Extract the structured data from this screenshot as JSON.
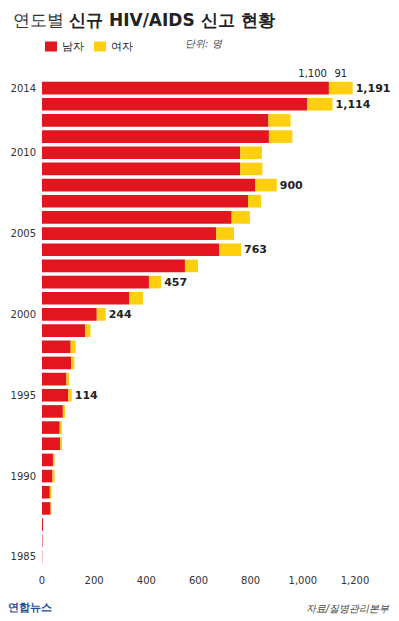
{
  "chart_data": {
    "type": "bar",
    "title": "연도별 신규 HIV/AIDS 신고 현황",
    "unit": "단위: 명",
    "source": "자료/질병관리본부",
    "credit": "연합뉴스",
    "orientation": "horizontal",
    "stacked": true,
    "grid": false,
    "legend": "top-left",
    "categories": [
      "1985",
      null,
      null,
      null,
      null,
      "1990",
      null,
      null,
      null,
      null,
      "1995",
      null,
      null,
      null,
      null,
      "2000",
      null,
      null,
      null,
      null,
      "2005",
      null,
      null,
      null,
      null,
      "2010",
      null,
      null,
      null,
      "2014"
    ],
    "series": [
      {
        "name": "남자",
        "color": "#e3161f",
        "values": [
          1,
          2,
          4,
          33,
          30,
          40,
          42,
          70,
          68,
          80,
          101,
          94,
          112,
          110,
          166,
          210,
          335,
          410,
          548,
          680,
          668,
          727,
          790,
          818,
          760,
          760,
          870,
          868,
          1016,
          1100
        ],
        "value_labels": [
          null,
          null,
          null,
          null,
          null,
          null,
          null,
          null,
          null,
          null,
          null,
          null,
          null,
          null,
          null,
          null,
          null,
          null,
          null,
          null,
          null,
          null,
          null,
          null,
          null,
          null,
          null,
          null,
          null,
          "1,100"
        ]
      },
      {
        "name": "여자",
        "color": "#fdcf0c",
        "values": [
          0,
          0,
          0,
          3,
          6,
          8,
          6,
          7,
          8,
          8,
          13,
          10,
          12,
          19,
          20,
          34,
          52,
          47,
          50,
          83,
          68,
          70,
          50,
          82,
          85,
          83,
          90,
          85,
          98,
          91
        ],
        "value_labels": [
          null,
          null,
          null,
          null,
          null,
          null,
          null,
          null,
          null,
          null,
          null,
          null,
          null,
          null,
          null,
          null,
          null,
          null,
          null,
          null,
          null,
          null,
          null,
          null,
          null,
          null,
          null,
          null,
          null,
          "91"
        ]
      }
    ],
    "total_labels": [
      null,
      null,
      null,
      null,
      null,
      null,
      null,
      null,
      null,
      null,
      "114",
      null,
      null,
      null,
      null,
      "244",
      null,
      "457",
      null,
      "763",
      null,
      null,
      null,
      "900",
      null,
      null,
      null,
      null,
      "1,114",
      "1,191"
    ],
    "xlim": [
      0,
      1200
    ],
    "xticks": [
      0,
      200,
      400,
      600,
      800,
      1000,
      1200
    ]
  }
}
